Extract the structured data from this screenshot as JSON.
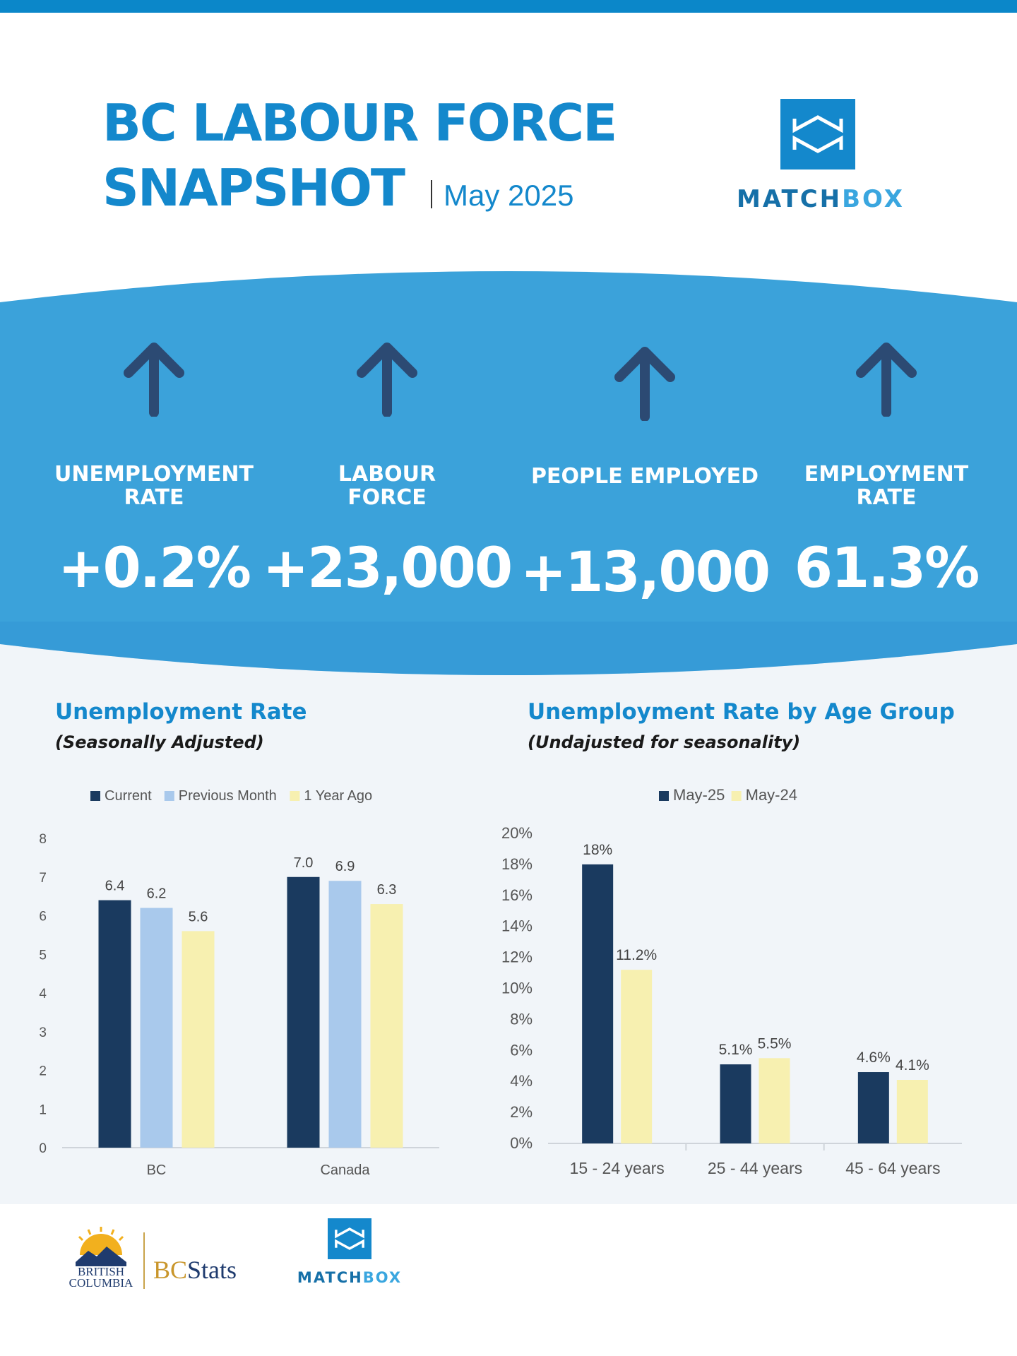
{
  "header": {
    "title_line1": "BC LABOUR FORCE",
    "title_line2": "SNAPSHOT",
    "date": "May 2025"
  },
  "brand": {
    "name_bold": "MATCH",
    "name_light": "BOX",
    "primary_color": "#1488cc",
    "band_color": "#3ba2da"
  },
  "kpis": [
    {
      "label": "UNEMPLOYMENT\nRATE",
      "value": "+0.2%",
      "trend": "up"
    },
    {
      "label": "LABOUR\nFORCE",
      "value": "+23,000",
      "trend": "up"
    },
    {
      "label": "PEOPLE EMPLOYED",
      "value": "+13,000",
      "trend": "up"
    },
    {
      "label": "EMPLOYMENT\nRATE",
      "value": "61.3%",
      "trend": "up"
    }
  ],
  "chart_data": [
    {
      "type": "bar",
      "title": "Unemployment Rate",
      "subtitle": "(Seasonally Adjusted)",
      "categories": [
        "BC",
        "Canada"
      ],
      "series": [
        {
          "name": "Current",
          "values": [
            6.4,
            7.0
          ],
          "labels": [
            "6.4",
            "7.0"
          ],
          "color": "#1a3a5f"
        },
        {
          "name": "Previous Month",
          "values": [
            6.2,
            6.9
          ],
          "labels": [
            "6.2",
            "6.9"
          ],
          "color": "#a9c9ec"
        },
        {
          "name": "1 Year Ago",
          "values": [
            5.6,
            6.3
          ],
          "labels": [
            "5.6",
            "6.3"
          ],
          "color": "#f7f0b0"
        }
      ],
      "ylim": [
        0,
        8
      ],
      "yticks": [
        "0",
        "1",
        "2",
        "3",
        "4",
        "5",
        "6",
        "7",
        "8"
      ],
      "legend": "top",
      "grid": false
    },
    {
      "type": "bar",
      "title": "Unemployment Rate by Age Group",
      "subtitle": "(Undajusted for seasonality)",
      "categories": [
        "15 - 24 years",
        "25 - 44 years",
        "45 - 64 years"
      ],
      "series": [
        {
          "name": "May-25",
          "values": [
            18,
            5.1,
            4.6
          ],
          "labels": [
            "18%",
            "5.1%",
            "4.6%"
          ],
          "color": "#1a3a5f"
        },
        {
          "name": "May-24",
          "values": [
            11.2,
            5.5,
            4.1
          ],
          "labels": [
            "11.2%",
            "5.5%",
            "4.1%"
          ],
          "color": "#f7f0b0"
        }
      ],
      "ylim": [
        0,
        20
      ],
      "yticks": [
        "0%",
        "2%",
        "4%",
        "6%",
        "8%",
        "10%",
        "12%",
        "14%",
        "16%",
        "18%",
        "20%"
      ],
      "legend": "top",
      "grid": false
    }
  ],
  "footer": {
    "bc_logo_text": "BRITISH\nCOLUMBIA",
    "bcstats_bc": "BC",
    "bcstats_stats": "Stats"
  }
}
